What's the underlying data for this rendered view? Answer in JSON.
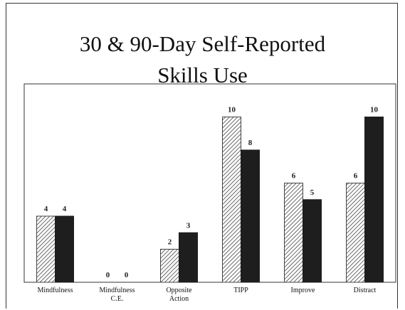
{
  "chart_data": {
    "type": "bar",
    "title": "30 & 90-Day Self-Reported\nSkills Use",
    "categories": [
      "Mindfulness",
      "Mindfulness\nC.E.",
      "Opposite\nAction",
      "TIPP",
      "Improve",
      "Distract"
    ],
    "series": [
      {
        "color": "#444444",
        "hatch": true,
        "values": [
          4,
          0,
          2,
          10,
          6,
          6
        ]
      },
      {
        "color": "#1e1e1e",
        "hatch": false,
        "values": [
          4,
          0,
          3,
          8,
          5,
          10
        ]
      }
    ],
    "ylim": [
      0,
      12
    ]
  }
}
